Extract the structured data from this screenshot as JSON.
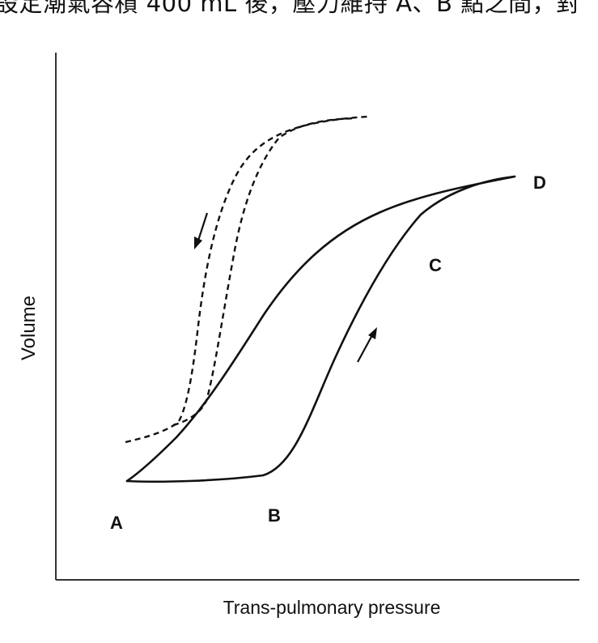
{
  "caption": "設定潮氣容積 400 mL 後，壓力維持 A、B 點之間，對",
  "axes": {
    "y_label": "Volume",
    "x_label": "Trans-pulmonary pressure"
  },
  "points": {
    "a": "A",
    "b": "B",
    "c": "C",
    "d": "D"
  },
  "curves": {
    "solid": "pressure-volume hysteresis loop",
    "dashed": "deflation limbs"
  },
  "colors": {
    "ink": "#111111",
    "background": "#ffffff"
  }
}
